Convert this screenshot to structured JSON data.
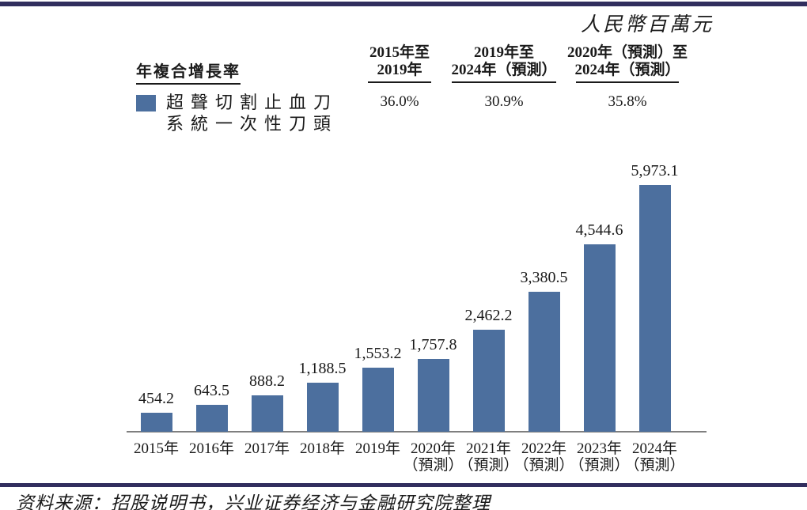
{
  "unit_label": "人民幣百萬元",
  "cagr_legend_title": "年複合增長率",
  "legend": {
    "series_lines": [
      "超聲切割止血刀",
      "系統一次性刀頭"
    ]
  },
  "chart_data": {
    "type": "bar",
    "title": "",
    "xlabel": "",
    "ylabel": "",
    "unit": "人民幣百萬元",
    "series_name": "超聲切割止血刀系統一次性刀頭",
    "categories": [
      [
        "2015年"
      ],
      [
        "2016年"
      ],
      [
        "2017年"
      ],
      [
        "2018年"
      ],
      [
        "2019年"
      ],
      [
        "2020年",
        "（預測）"
      ],
      [
        "2021年",
        "（預測）"
      ],
      [
        "2022年",
        "（預測）"
      ],
      [
        "2023年",
        "（預測）"
      ],
      [
        "2024年",
        "（預測）"
      ]
    ],
    "values": [
      454.2,
      643.5,
      888.2,
      1188.5,
      1553.2,
      1757.8,
      2462.2,
      3380.5,
      4544.6,
      5973.1
    ],
    "value_labels": [
      "454.2",
      "643.5",
      "888.2",
      "1,188.5",
      "1,553.2",
      "1,757.8",
      "2,462.2",
      "3,380.5",
      "4,544.6",
      "5,973.1"
    ],
    "cagr_columns": [
      {
        "period_lines": [
          "2015年至",
          "2019年"
        ],
        "value": "36.0%"
      },
      {
        "period_lines": [
          "2019年至",
          "2024年（預測）"
        ],
        "value": "30.9%"
      },
      {
        "period_lines": [
          "2020年（預測）至",
          "2024年（預測）"
        ],
        "value": "35.8%"
      }
    ],
    "ylim": [
      0,
      6200
    ],
    "grid": false,
    "legend_position": "top-left"
  },
  "colors": {
    "bar": "#4C6F9E",
    "divider": "#312E5E",
    "axis": "#7F7F7F"
  },
  "source_note": "资料来源：招股说明书，兴业证券经济与金融研究院整理"
}
